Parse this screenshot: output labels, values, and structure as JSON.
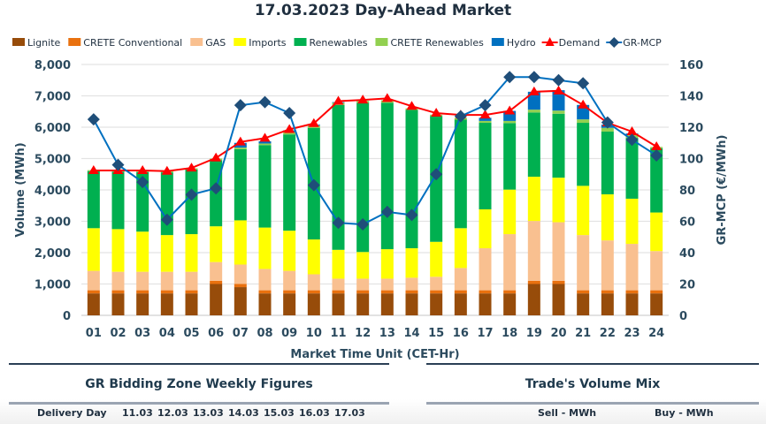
{
  "chart_data": {
    "type": "bar",
    "title": "17.03.2023  Day-Ahead Market",
    "xlabel": "Market Time Unit (CET-Hr)",
    "ylabel": "Volume (MWh)",
    "y2label": "GR-MCP (€/MWh)",
    "ylim": [
      0,
      8000
    ],
    "y2lim": [
      0,
      160
    ],
    "yticks": [
      "0",
      "1,000",
      "2,000",
      "3,000",
      "4,000",
      "5,000",
      "6,000",
      "7,000",
      "8,000"
    ],
    "y2ticks": [
      "0",
      "20",
      "40",
      "60",
      "80",
      "100",
      "120",
      "140",
      "160"
    ],
    "grid": true,
    "legend": "top",
    "stacked": true,
    "categories": [
      "01",
      "02",
      "03",
      "04",
      "05",
      "06",
      "07",
      "08",
      "09",
      "10",
      "11",
      "12",
      "13",
      "14",
      "15",
      "16",
      "17",
      "18",
      "19",
      "20",
      "21",
      "22",
      "23",
      "24"
    ],
    "series": [
      {
        "name": "Lignite",
        "color": "#974c0a",
        "kind": "bar",
        "values": [
          700,
          700,
          700,
          700,
          700,
          1000,
          900,
          700,
          700,
          700,
          700,
          700,
          700,
          700,
          700,
          700,
          700,
          700,
          1000,
          1000,
          700,
          700,
          700,
          700
        ]
      },
      {
        "name": "CRETE Conventional",
        "color": "#e9710f",
        "kind": "bar",
        "values": [
          100,
          100,
          100,
          100,
          100,
          100,
          100,
          100,
          100,
          100,
          100,
          100,
          100,
          100,
          100,
          100,
          100,
          100,
          100,
          100,
          100,
          100,
          100,
          100
        ]
      },
      {
        "name": "GAS",
        "color": "#f9c090",
        "kind": "bar",
        "values": [
          620,
          590,
          590,
          590,
          590,
          600,
          620,
          680,
          620,
          510,
          370,
          370,
          370,
          400,
          430,
          710,
          1340,
          1790,
          1910,
          1870,
          1760,
          1590,
          1480,
          1250
        ]
      },
      {
        "name": "Imports",
        "color": "#ffff00",
        "kind": "bar",
        "values": [
          1360,
          1360,
          1280,
          1170,
          1200,
          1140,
          1410,
          1320,
          1280,
          1110,
          920,
          850,
          940,
          940,
          1115,
          1270,
          1240,
          1420,
          1410,
          1420,
          1570,
          1470,
          1440,
          1230
        ]
      },
      {
        "name": "Renewables",
        "color": "#00b050",
        "kind": "bar",
        "values": [
          1820,
          1830,
          1900,
          2000,
          2060,
          2110,
          2270,
          2630,
          3070,
          3560,
          4620,
          4760,
          4670,
          4410,
          4015,
          3460,
          2760,
          2120,
          2050,
          2040,
          2010,
          2000,
          1940,
          2050
        ]
      },
      {
        "name": "CRETE Renewables",
        "color": "#92d050",
        "kind": "bar",
        "values": [
          30,
          40,
          40,
          40,
          40,
          50,
          50,
          50,
          80,
          70,
          70,
          60,
          80,
          50,
          40,
          60,
          60,
          70,
          90,
          100,
          110,
          120,
          90,
          40
        ]
      },
      {
        "name": "Hydro",
        "color": "#0070c0",
        "kind": "bar",
        "values": [
          0,
          0,
          0,
          0,
          0,
          0,
          150,
          70,
          50,
          30,
          20,
          0,
          0,
          0,
          0,
          0,
          100,
          320,
          570,
          650,
          460,
          100,
          50,
          0
        ]
      },
      {
        "name": "Demand",
        "color": "#ff0000",
        "kind": "line",
        "axis": "left",
        "values": [
          4620,
          4620,
          4620,
          4600,
          4700,
          5020,
          5530,
          5650,
          5930,
          6120,
          6830,
          6870,
          6920,
          6670,
          6450,
          6390,
          6390,
          6520,
          7130,
          7160,
          6710,
          6140,
          5860,
          5380
        ]
      },
      {
        "name": "GR-MCP",
        "color": "#1f4e79",
        "line_color": "#0070c0",
        "kind": "line",
        "axis": "right",
        "values": [
          125,
          96,
          85,
          61,
          77,
          81,
          134,
          136,
          129,
          83,
          59,
          58,
          66,
          64,
          90,
          127,
          134,
          152,
          152,
          150,
          148,
          123,
          112,
          102
        ]
      }
    ]
  },
  "bottom": {
    "weekly_title": "GR Bidding Zone Weekly Figures",
    "mix_title": "Trade's Volume Mix",
    "delivery_day_label": "Delivery Day",
    "days": [
      "11.03",
      "12.03",
      "13.03",
      "14.03",
      "15.03",
      "16.03",
      "17.03"
    ],
    "sell_label": "Sell - MWh",
    "buy_label": "Buy - MWh"
  }
}
